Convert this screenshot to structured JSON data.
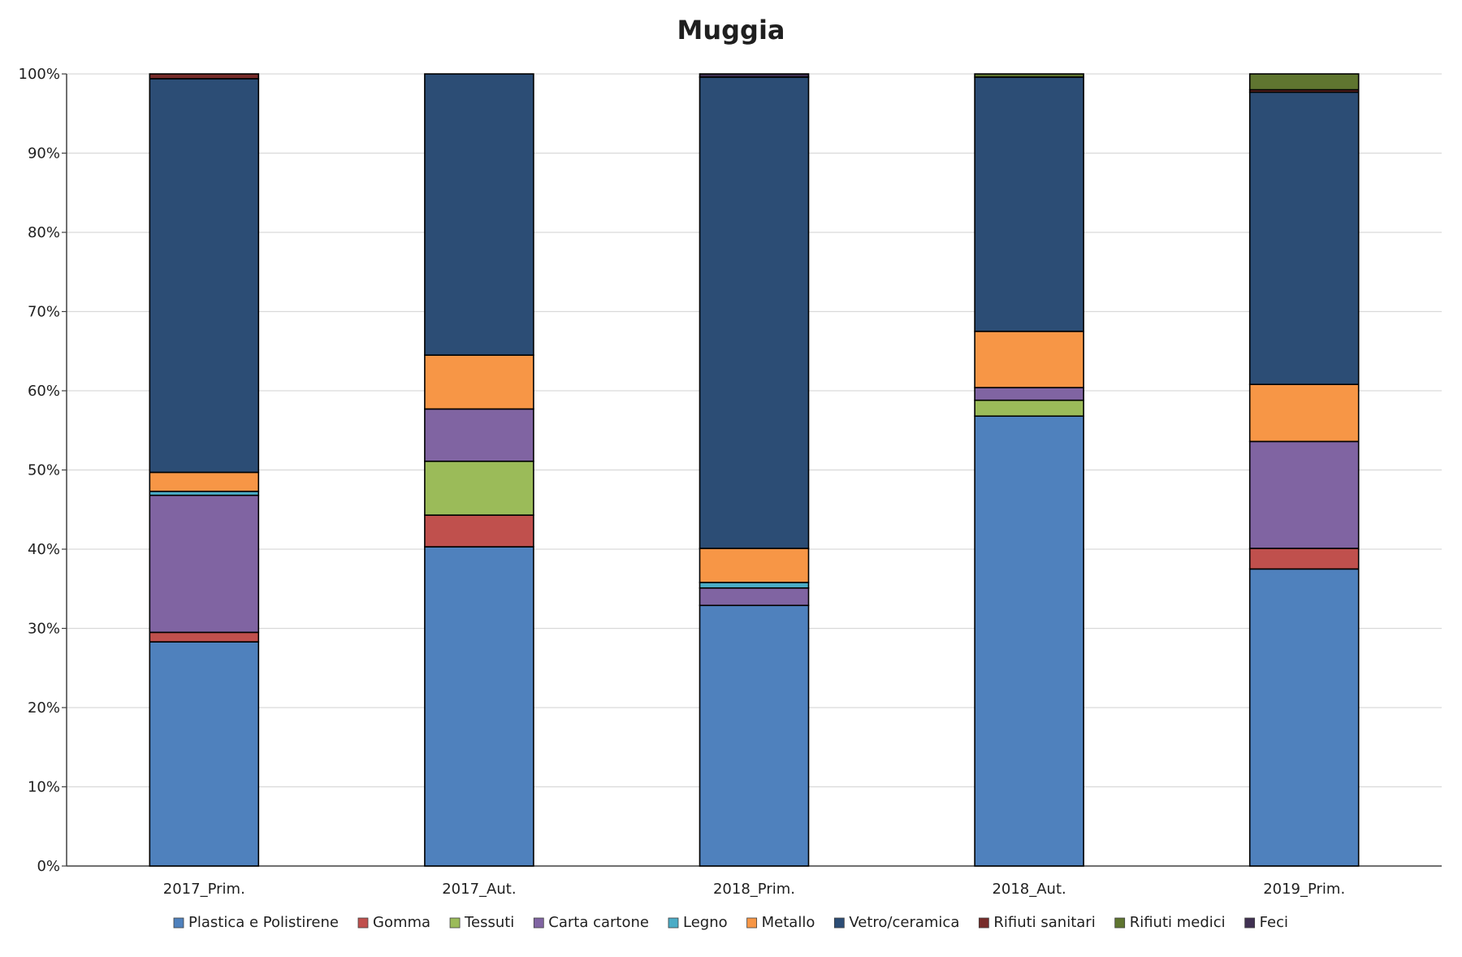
{
  "chart_data": {
    "type": "bar",
    "stacked": true,
    "title": "Muggia",
    "xlabel": "",
    "ylabel": "",
    "ylim": [
      0,
      100
    ],
    "y_tick_labels": [
      "0%",
      "10%",
      "20%",
      "30%",
      "40%",
      "50%",
      "60%",
      "70%",
      "80%",
      "90%",
      "100%"
    ],
    "categories": [
      "2017_Prim.",
      "2017_Aut.",
      "2018_Prim.",
      "2018_Aut.",
      "2019_Prim."
    ],
    "series": [
      {
        "name": "Plastica e Polistirene",
        "color": "#4f81bd",
        "values": [
          28.3,
          40.3,
          32.9,
          56.8,
          37.5
        ]
      },
      {
        "name": "Gomma",
        "color": "#c0504d",
        "values": [
          1.2,
          4.0,
          0.0,
          0.0,
          2.6
        ]
      },
      {
        "name": "Tessuti",
        "color": "#9bbb59",
        "values": [
          0.0,
          6.8,
          0.0,
          2.0,
          0.0
        ]
      },
      {
        "name": "Carta cartone",
        "color": "#8064a2",
        "values": [
          17.3,
          6.6,
          2.2,
          1.6,
          13.5
        ]
      },
      {
        "name": "Legno",
        "color": "#4bacc6",
        "values": [
          0.5,
          0.0,
          0.7,
          0.0,
          0.0
        ]
      },
      {
        "name": "Metallo",
        "color": "#f79646",
        "values": [
          2.4,
          6.8,
          4.3,
          7.1,
          7.2
        ]
      },
      {
        "name": "Vetro/ceramica",
        "color": "#2c4d75",
        "values": [
          49.7,
          35.5,
          59.5,
          32.1,
          36.9
        ]
      },
      {
        "name": "Rifiuti sanitari",
        "color": "#772c2a",
        "values": [
          0.6,
          0.0,
          0.0,
          0.0,
          0.3
        ]
      },
      {
        "name": "Rifiuti medici",
        "color": "#5f7530",
        "values": [
          0.0,
          0.0,
          0.0,
          0.4,
          2.0
        ]
      },
      {
        "name": "Feci",
        "color": "#403152",
        "values": [
          0.0,
          0.0,
          0.4,
          0.0,
          0.0
        ]
      }
    ],
    "grid": true,
    "legend_position": "bottom"
  }
}
